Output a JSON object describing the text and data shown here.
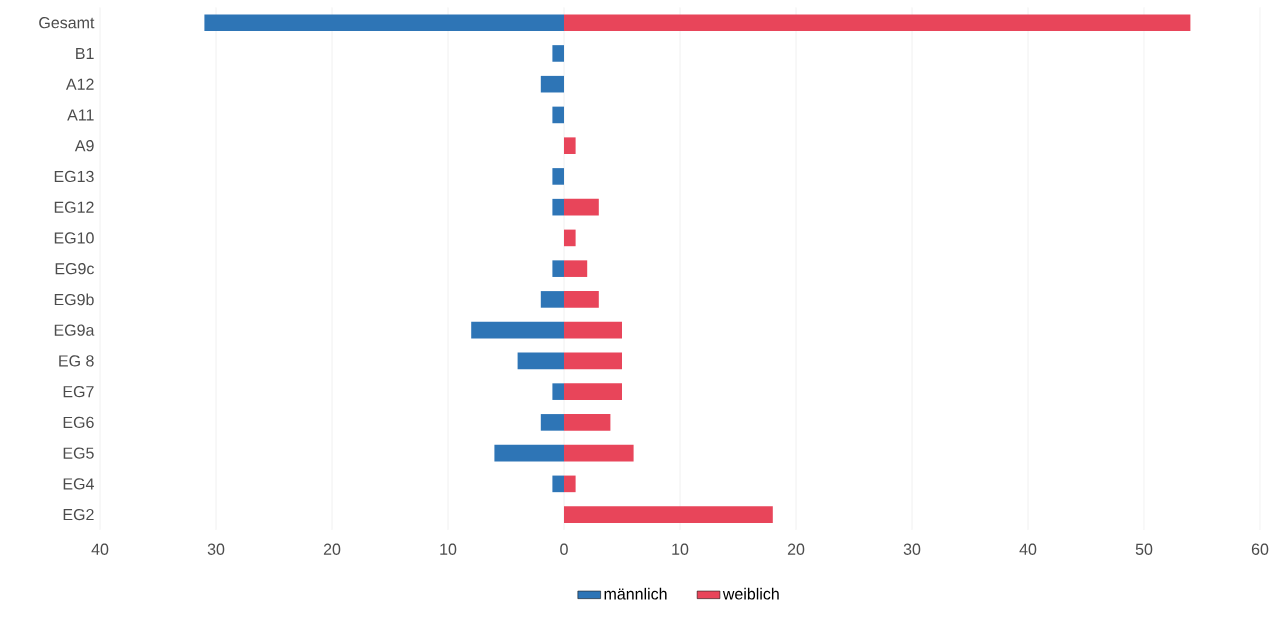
{
  "chart_data": {
    "type": "bar",
    "orientation": "horizontal",
    "categories": [
      "Gesamt",
      "B1",
      "A12",
      "A11",
      "A9",
      "EG13",
      "EG12",
      "EG10",
      "EG9c",
      "EG9b",
      "EG9a",
      "EG 8",
      "EG7",
      "EG6",
      "EG5",
      "EG4",
      "EG2"
    ],
    "series": [
      {
        "name": "männlich",
        "color": "#2e75b6",
        "values": [
          -31,
          -1,
          -2,
          -1,
          null,
          -1,
          -1,
          null,
          -1,
          -2,
          -8,
          -4,
          -1,
          -2,
          -6,
          -1,
          null
        ]
      },
      {
        "name": "weiblich",
        "color": "#e8455a",
        "values": [
          54,
          null,
          null,
          null,
          1,
          null,
          3,
          1,
          2,
          3,
          5,
          5,
          5,
          4,
          6,
          1,
          18
        ]
      }
    ],
    "xlim": [
      -40,
      60
    ],
    "xticks": [
      {
        "value": -40,
        "label": "40"
      },
      {
        "value": -30,
        "label": "30"
      },
      {
        "value": -20,
        "label": "20"
      },
      {
        "value": -10,
        "label": "10"
      },
      0,
      10,
      20,
      30,
      40,
      50,
      60
    ],
    "grid": "x",
    "legend": "bottom",
    "stacked": true
  }
}
